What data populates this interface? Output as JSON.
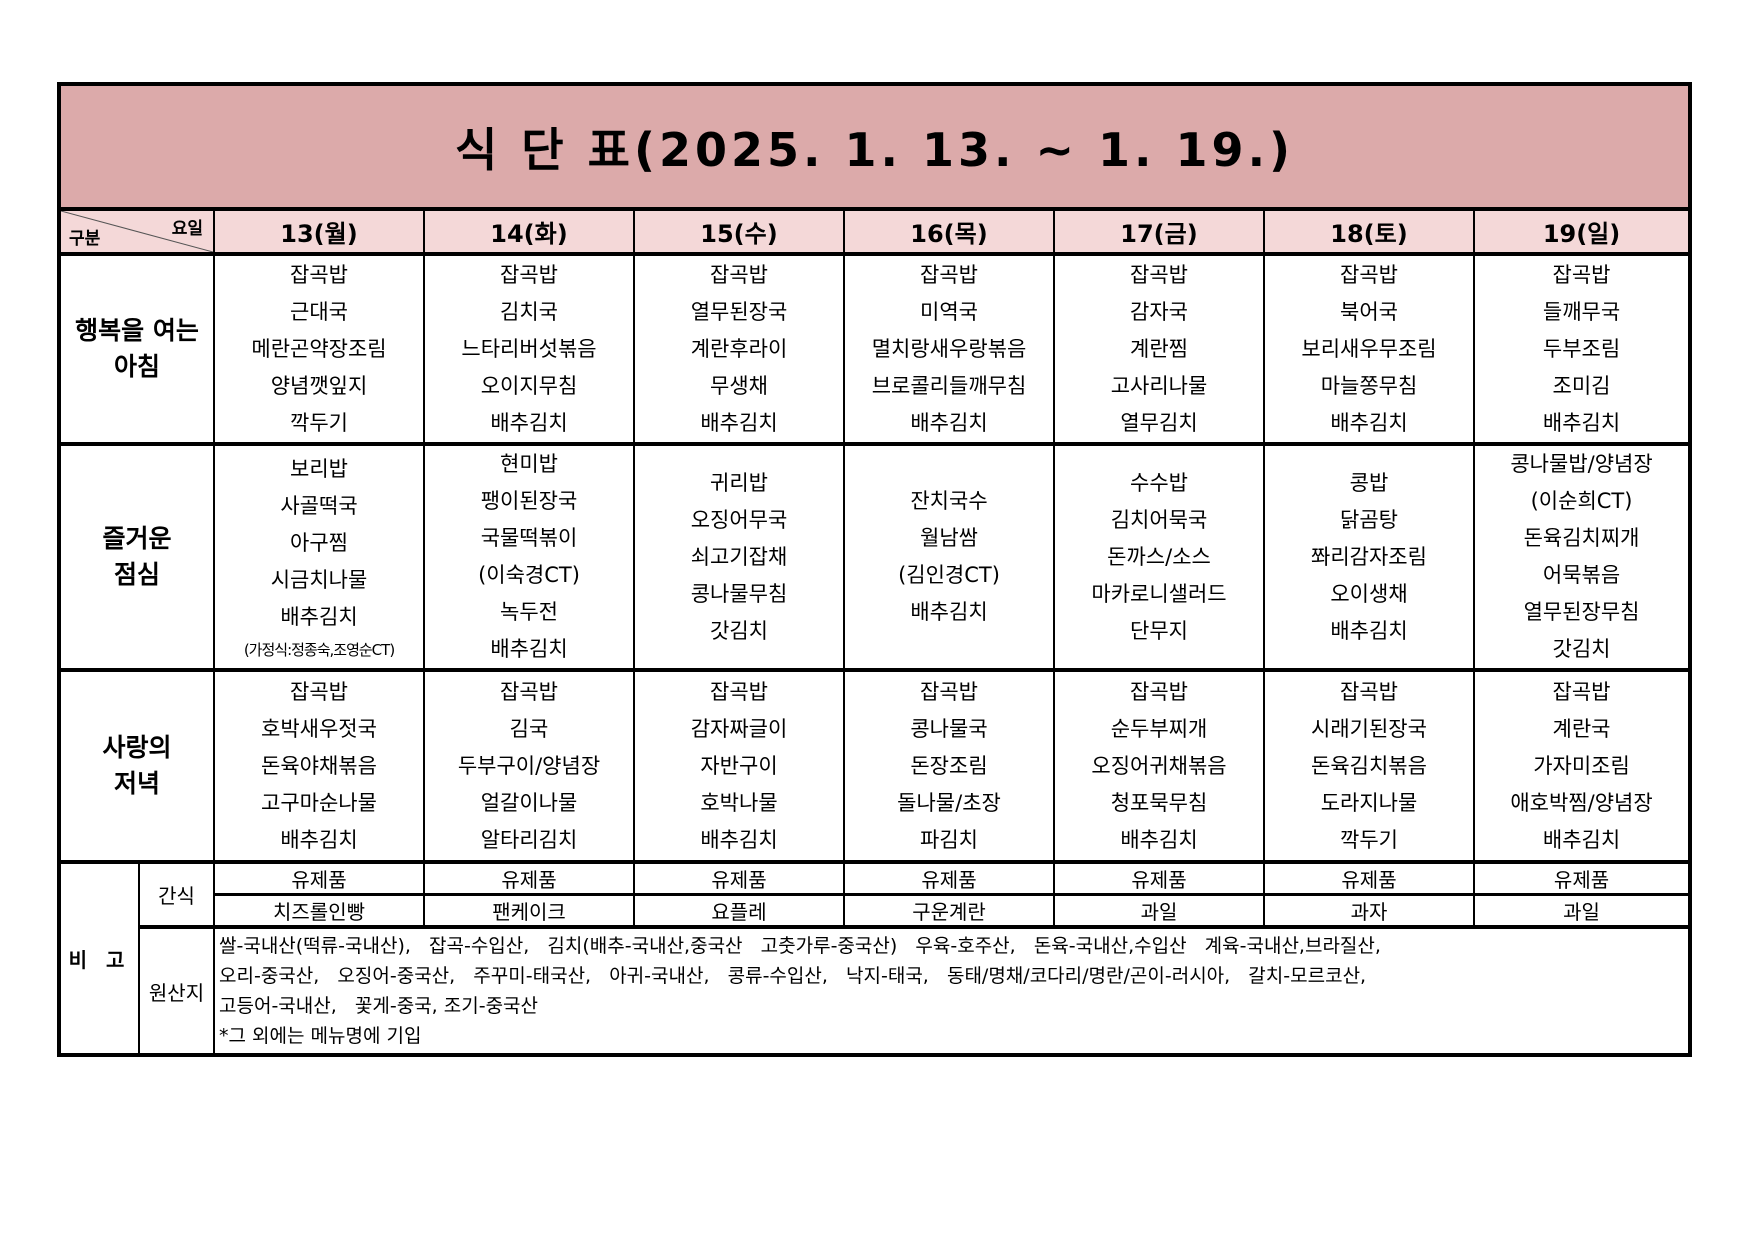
{
  "title": "식 단 표(2025. 1. 13. ~ 1. 19.)",
  "corner": {
    "top_right": "요일",
    "bottom_left": "구분"
  },
  "days": [
    "13(월)",
    "14(화)",
    "15(수)",
    "16(목)",
    "17(금)",
    "18(토)",
    "19(일)"
  ],
  "colors": {
    "title_bg": "#dcaaaa",
    "header_bg": "#f4d8d8",
    "border": "#000000"
  },
  "rows": {
    "breakfast": {
      "label_lines": [
        "행복을 여는",
        "아침"
      ],
      "cells": [
        [
          "잡곡밥",
          "근대국",
          "메란곤약장조림",
          "양념깻잎지",
          "깍두기"
        ],
        [
          "잡곡밥",
          "김치국",
          "느타리버섯볶음",
          "오이지무침",
          "배추김치"
        ],
        [
          "잡곡밥",
          "열무된장국",
          "계란후라이",
          "무생채",
          "배추김치"
        ],
        [
          "잡곡밥",
          "미역국",
          "멸치랑새우랑볶음",
          "브로콜리들깨무침",
          "배추김치"
        ],
        [
          "잡곡밥",
          "감자국",
          "계란찜",
          "고사리나물",
          "열무김치"
        ],
        [
          "잡곡밥",
          "북어국",
          "보리새우무조림",
          "마늘쫑무침",
          "배추김치"
        ],
        [
          "잡곡밥",
          "들깨무국",
          "두부조림",
          "조미김",
          "배추김치"
        ]
      ]
    },
    "lunch": {
      "label_lines": [
        "즐거운",
        "점심"
      ],
      "cells": [
        [
          "보리밥",
          "사골떡국",
          "아구찜",
          "시금치나물",
          "배추김치",
          {
            "text": "(가정식:정종숙,조영순CT)",
            "small": true
          }
        ],
        [
          "현미밥",
          "팽이된장국",
          "국물떡볶이",
          "(이숙경CT)",
          "녹두전",
          "배추김치"
        ],
        [
          "귀리밥",
          "오징어무국",
          "쇠고기잡채",
          "콩나물무침",
          "갓김치"
        ],
        [
          "잔치국수",
          "월남쌈",
          "(김인경CT)",
          "배추김치"
        ],
        [
          "수수밥",
          "김치어묵국",
          "돈까스/소스",
          "마카로니샐러드",
          "단무지"
        ],
        [
          "콩밥",
          "닭곰탕",
          "쫘리감자조림",
          "오이생채",
          "배추김치"
        ],
        [
          "콩나물밥/양념장",
          "(이순희CT)",
          "돈육김치찌개",
          "어묵볶음",
          "열무된장무침",
          "갓김치"
        ]
      ]
    },
    "dinner": {
      "label_lines": [
        "사랑의",
        "저녁"
      ],
      "cells": [
        [
          "잡곡밥",
          "호박새우젓국",
          "돈육야채볶음",
          "고구마순나물",
          "배추김치"
        ],
        [
          "잡곡밥",
          "김국",
          "두부구이/양념장",
          "얼갈이나물",
          "알타리김치"
        ],
        [
          "잡곡밥",
          "감자짜글이",
          "자반구이",
          "호박나물",
          "배추김치"
        ],
        [
          "잡곡밥",
          "콩나물국",
          "돈장조림",
          "돌나물/초장",
          "파김치"
        ],
        [
          "잡곡밥",
          "순두부찌개",
          "오징어귀채볶음",
          "청포묵무침",
          "배추김치"
        ],
        [
          "잡곡밥",
          "시래기된장국",
          "돈육김치볶음",
          "도라지나물",
          "깍두기"
        ],
        [
          "잡곡밥",
          "계란국",
          "가자미조림",
          "애호박찜/양념장",
          "배추김치"
        ]
      ]
    }
  },
  "bigo": {
    "label": "비 고",
    "snack": {
      "label": "간식",
      "dairy": [
        "유제품",
        "유제품",
        "유제품",
        "유제품",
        "유제품",
        "유제품",
        "유제품"
      ],
      "items": [
        "치즈롤인빵",
        "팬케이크",
        "요플레",
        "구운계란",
        "과일",
        "과자",
        "과일"
      ]
    },
    "origin": {
      "label": "원산지",
      "lines": [
        "쌀-국내산(떡류-국내산),   잡곡-수입산,   김치(배추-국내산,중국산   고춧가루-중국산)   우육-호주산,   돈육-국내산,수입산   계육-국내산,브라질산,",
        "오리-중국산,   오징어-중국산,   주꾸미-태국산,   아귀-국내산,   콩류-수입산,   낙지-태국,   동태/명채/코다리/명란/곤이-러시아,   갈치-모르코산,",
        "고등어-국내산,   꽃게-중국, 조기-중국산",
        "*그 외에는 메뉴명에 기입"
      ]
    }
  }
}
